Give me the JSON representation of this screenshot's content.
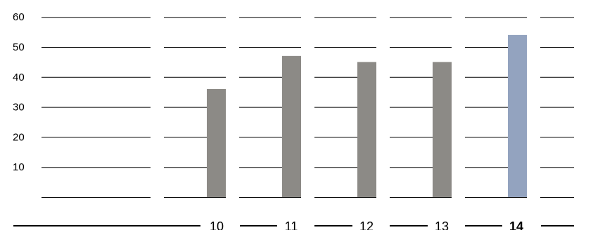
{
  "chart_data": {
    "type": "bar",
    "title": "",
    "xlabel": "",
    "ylabel": "",
    "categories": [
      "",
      "10",
      "11",
      "12",
      "13",
      "14",
      ""
    ],
    "values": [
      null,
      36,
      47,
      45,
      45,
      54,
      null
    ],
    "highlight_category": "14",
    "yticks": [
      "10",
      "20",
      "30",
      "40",
      "50",
      "60"
    ],
    "ylim": [
      0,
      60
    ],
    "grid": true,
    "legend": "none",
    "colors": {
      "bar": "#8c8a86",
      "highlight": "#93a3bf",
      "gridline": "#000000",
      "text": "#000000"
    }
  }
}
